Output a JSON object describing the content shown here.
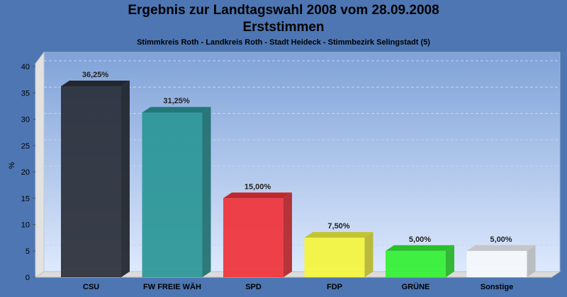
{
  "chart_data": {
    "type": "bar",
    "title": "Ergebnis zur Landtagswahl 2008 vom 28.09.2008",
    "subtitle": "Erststimmen",
    "caption": "Stimmkreis Roth - Landkreis Roth - Stadt Heideck - Stimmbezirk Selingstadt (5)",
    "ylabel": "%",
    "xlabel": "",
    "ylim": [
      0,
      40
    ],
    "yticks": [
      0,
      5,
      10,
      15,
      20,
      25,
      30,
      35,
      40
    ],
    "grid": true,
    "style": "3d",
    "categories": [
      "CSU",
      "FW FREIE WÄH",
      "SPD",
      "FDP",
      "GRÜNE",
      "Sonstige"
    ],
    "values": [
      36.25,
      31.25,
      15.0,
      7.5,
      5.0,
      5.0
    ],
    "data_labels": [
      "36,25%",
      "31,25%",
      "15,00%",
      "7,50%",
      "5,00%",
      "5,00%"
    ],
    "colors": [
      "#2a2f38",
      "#2a9696",
      "#f03238",
      "#f5f53c",
      "#32f032",
      "#f5f8fc"
    ]
  }
}
